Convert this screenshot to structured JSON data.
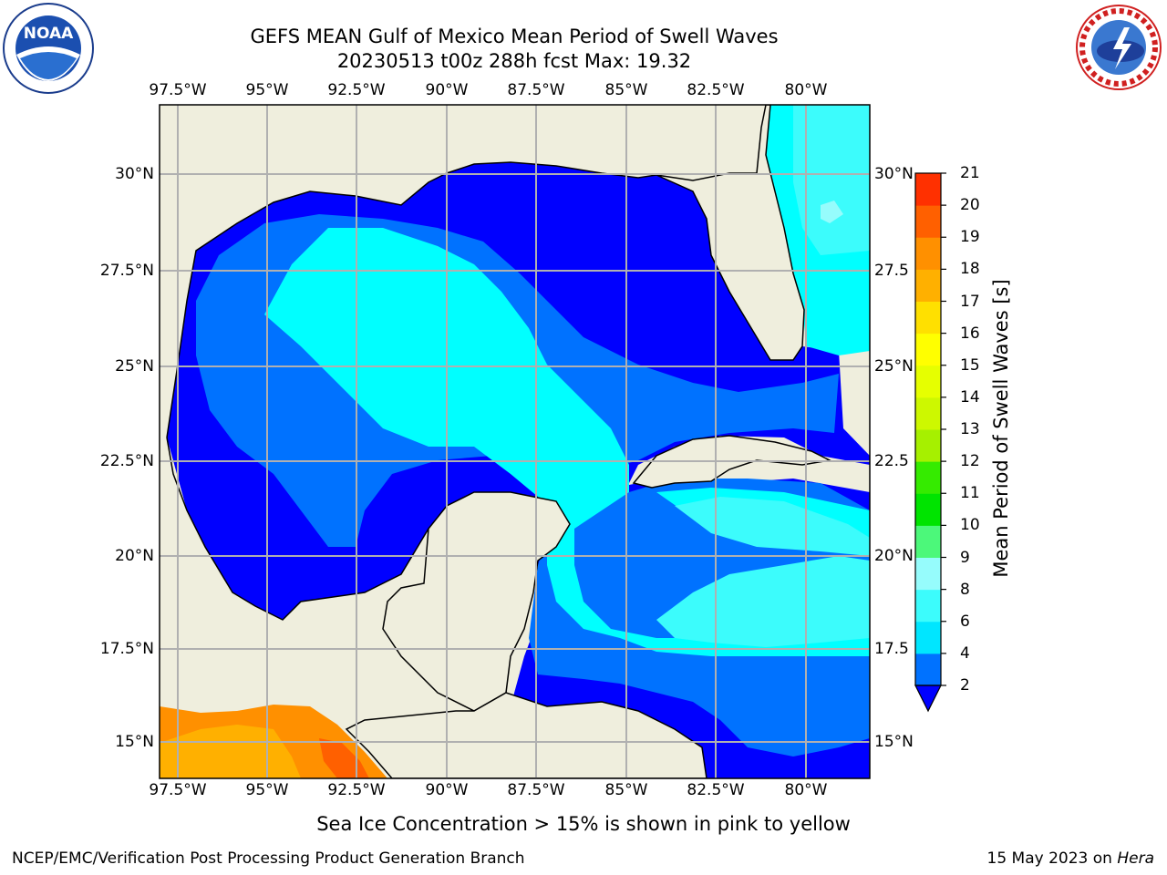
{
  "title_line1": "GEFS MEAN Gulf of Mexico Mean Period of Swell Waves",
  "title_line2": "20230513 t00z 288h fcst   Max: 19.32",
  "logos": {
    "left": "noara-logo",
    "right": "national-weather-service-logo"
  },
  "map": {
    "region": "Gulf of Mexico",
    "lon_labels": [
      "97.5°W",
      "95°W",
      "92.5°W",
      "90°W",
      "87.5°W",
      "85°W",
      "82.5°W",
      "80°W"
    ],
    "lat_labels_left": [
      "30°N",
      "27.5°N",
      "25°N",
      "22.5°N",
      "20°N",
      "17.5°N",
      "15°N"
    ],
    "lat_labels_right": [
      "30°N",
      "27.5",
      "25°N",
      "22.5",
      "20°N",
      "17.5",
      "15°N"
    ],
    "colors": {
      "land": "#efeedd",
      "water_no_data": "#ffffff",
      "grid": "#b0b0b0",
      "coast": "#000000"
    }
  },
  "colorbar": {
    "label": "Mean Period of Swell Waves [s]",
    "ticks": [
      "2",
      "4",
      "6",
      "8",
      "9",
      "10",
      "11",
      "12",
      "13",
      "14",
      "15",
      "16",
      "17",
      "18",
      "19",
      "20",
      "21"
    ],
    "colors": [
      "#0000ff",
      "#0072ff",
      "#00e6ff",
      "#3cfcfc",
      "#96fcfc",
      "#4cf87a",
      "#00e400",
      "#35eb00",
      "#a6f000",
      "#cdf800",
      "#e6ff00",
      "#ffff00",
      "#ffe000",
      "#ffb000",
      "#ff9000",
      "#ff6000",
      "#ff3000",
      "#ff0000"
    ]
  },
  "caption": "Sea Ice Concentration > 15% is shown in pink to yellow",
  "footer_left": "NCEP/EMC/Verification Post Processing Product Generation Branch",
  "footer_right_date": "15 May 2023 on ",
  "footer_right_host": "Hera"
}
